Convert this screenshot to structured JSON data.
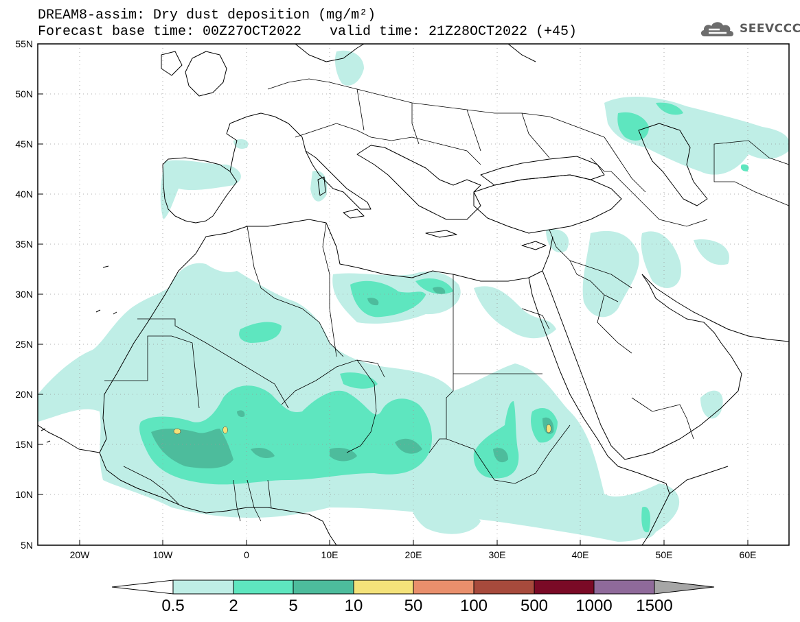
{
  "header": {
    "title_line1": "DREAM8-assim: Dry dust deposition (mg/m²)",
    "title_line2": "Forecast base time: 00Z27OCT2022",
    "valid_time": "valid time: 21Z28OCT2022 (+45)"
  },
  "logo": {
    "text": "SEEVCCC",
    "icon": "cloud-icon"
  },
  "axes": {
    "lat_labels": [
      "55N",
      "50N",
      "45N",
      "40N",
      "35N",
      "30N",
      "25N",
      "20N",
      "15N",
      "10N",
      "5N"
    ],
    "lon_labels": [
      "20W",
      "10W",
      "0",
      "10E",
      "20E",
      "30E",
      "40E",
      "50E",
      "60E"
    ]
  },
  "colorbar": {
    "labels": [
      "0.5",
      "2",
      "5",
      "10",
      "50",
      "100",
      "500",
      "1000",
      "1500"
    ],
    "colors": [
      "#bfeee6",
      "#5ee6bf",
      "#4dbc9c",
      "#f4e27a",
      "#e98f6c",
      "#a74a3c",
      "#7a0a26",
      "#8f6a9a"
    ],
    "under_color": "#ffffff",
    "over_color": "#a6a6a6"
  },
  "map_colors": {
    "light": "#bfeee6",
    "mid": "#5ee6bf",
    "dark": "#4dbc9c",
    "yellow": "#f4e27a"
  }
}
